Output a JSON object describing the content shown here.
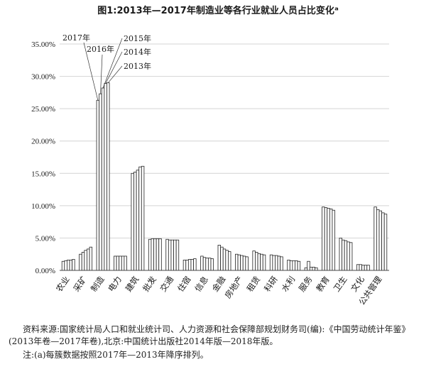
{
  "title": "图1:2013年—2017年制造业等各行业就业人员占比变化ᵃ",
  "notes": {
    "source": "资料来源:国家统计局人口和就业统计司、人力资源和社会保障部规划财务司(编):《中国劳动统计年鉴》(2013年卷—2017年卷),北京:中国统计出版社2014年版—2018年版。",
    "note": "注:(a)每簇数据按照2017年—2013年降序排列。"
  },
  "colors": {
    "bar": "#ffffff",
    "stroke": "#222222",
    "grid": "#d4d4d4",
    "text": "#1a1a1a"
  },
  "chart_data": {
    "type": "bar",
    "title": "图1:2013年—2017年制造业等各行业就业人员占比变化ᵃ",
    "xlabel": "",
    "ylabel": "",
    "ylim": [
      0,
      35
    ],
    "y_ticks": [
      "0.00%",
      "5.00%",
      "10.00%",
      "15.00%",
      "20.00%",
      "25.00%",
      "30.00%",
      "35.00%"
    ],
    "grid": true,
    "legend": "callout labels at top-left pointing to 制造 bars",
    "series_order": [
      "2017年",
      "2016年",
      "2015年",
      "2014年",
      "2013年"
    ],
    "callouts": [
      "2017年",
      "2016年",
      "2015年",
      "2014年",
      "2013年"
    ],
    "categories": [
      "农业",
      "采矿",
      "制造",
      "电力",
      "建筑",
      "批发",
      "交通",
      "住宿",
      "信息",
      "金融",
      "房地产",
      "租赁",
      "科研",
      "水利",
      "服务",
      "教育",
      "卫生",
      "文化",
      "公共管理"
    ],
    "series": [
      {
        "values": [
          1.4,
          2.5,
          26.3,
          2.2,
          15.0,
          4.8,
          4.8,
          1.6,
          2.2,
          3.9,
          2.5,
          3.0,
          2.4,
          1.6,
          0.4,
          9.8,
          5.0,
          0.9,
          9.8
        ]
      },
      {
        "values": [
          1.5,
          2.8,
          27.3,
          2.2,
          15.2,
          4.9,
          4.7,
          1.6,
          2.0,
          3.6,
          2.4,
          2.8,
          2.3,
          1.5,
          1.4,
          9.7,
          4.7,
          0.9,
          9.4
        ]
      },
      {
        "values": [
          1.6,
          3.1,
          28.2,
          2.2,
          15.5,
          4.9,
          4.7,
          1.7,
          1.9,
          3.3,
          2.3,
          2.6,
          2.3,
          1.5,
          0.5,
          9.6,
          4.6,
          0.8,
          9.2
        ]
      },
      {
        "values": [
          1.6,
          3.3,
          28.9,
          2.2,
          16.0,
          4.9,
          4.7,
          1.7,
          1.9,
          3.1,
          2.2,
          2.5,
          2.2,
          1.5,
          0.5,
          9.5,
          4.4,
          0.8,
          8.9
        ]
      },
      {
        "values": [
          1.7,
          3.6,
          29.0,
          2.2,
          16.1,
          4.9,
          4.7,
          1.8,
          1.8,
          2.9,
          2.1,
          2.4,
          2.1,
          1.4,
          0.4,
          9.3,
          4.3,
          0.8,
          8.7
        ]
      }
    ]
  }
}
